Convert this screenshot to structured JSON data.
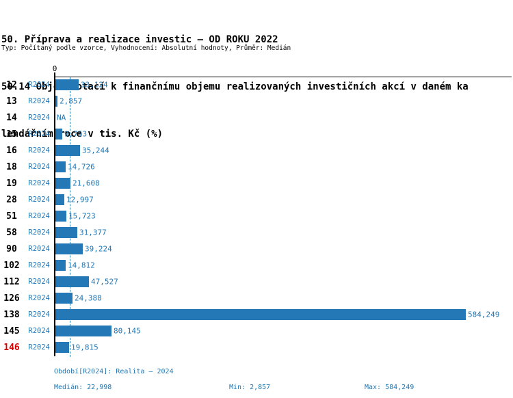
{
  "header": {
    "title_line1": "50. Příprava a realizace investic – OD ROKU 2022",
    "title_line2": "50.14 Objem dotací k finančnímu objemu realizovaných investičních akcí v daném ka",
    "title_line3": "lendářním roce v tis. Kč (%)",
    "meta": "Typ: Počítaný podle vzorce, Vyhodnocení: Absolutní hodnoty, Průměr: Medián"
  },
  "chart_data": {
    "type": "bar",
    "orientation": "horizontal",
    "title": "50.14 Objem dotací k finančnímu objemu realizovaných investičních akcí v daném kalendářním roce v tis. Kč (%)",
    "series_label": "R2024",
    "zero_tick": "0",
    "categories": [
      "12",
      "13",
      "14",
      "15",
      "16",
      "18",
      "19",
      "28",
      "51",
      "58",
      "90",
      "102",
      "112",
      "126",
      "138",
      "145",
      "146"
    ],
    "values": [
      33124,
      2857,
      null,
      9753,
      35244,
      14726,
      21608,
      12997,
      15723,
      31377,
      39224,
      14812,
      47527,
      24388,
      584249,
      80145,
      19815
    ],
    "value_labels": [
      "33,124",
      "2,857",
      "NA",
      "9,753",
      "35,244",
      "14,726",
      "21,608",
      "12,997",
      "15,723",
      "31,377",
      "39,224",
      "14,812",
      "47,527",
      "24,388",
      "584,249",
      "80,145",
      "19,815"
    ],
    "highlighted_category": "146",
    "median_value": 22998,
    "xlim": [
      0,
      584249
    ],
    "grid": false,
    "legend": false,
    "bar_color": "#2478b5",
    "text_color": "#1f77b4",
    "highlight_color": "#d60000"
  },
  "footer": {
    "period": "Období[R2024]: Realita – 2024",
    "median": "Medián: 22,998",
    "min": "Min: 2,857",
    "max": "Max: 584,249"
  }
}
